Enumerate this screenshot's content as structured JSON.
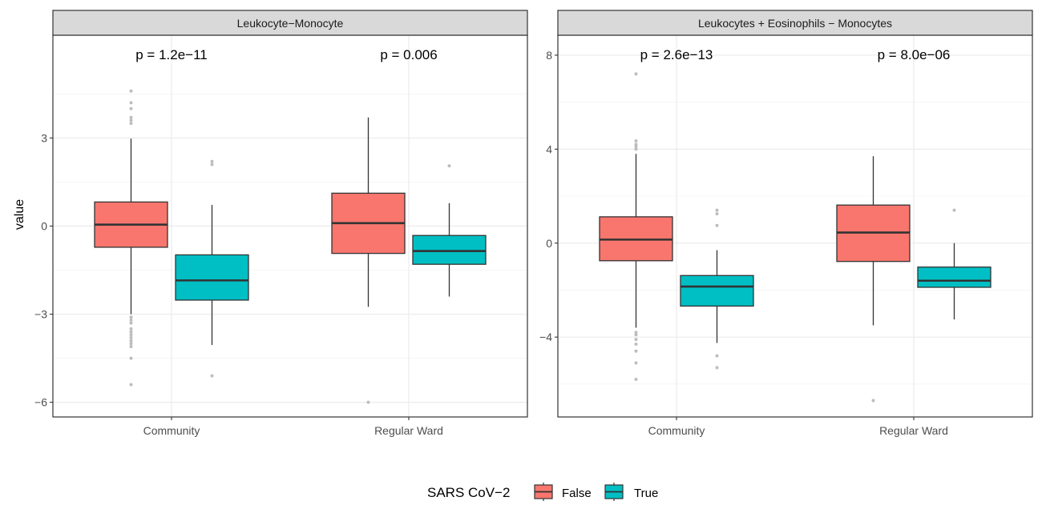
{
  "figure": {
    "y_axis_label": "value",
    "legend": {
      "title": "SARS CoV−2",
      "position": "bottom"
    }
  },
  "colors": {
    "false_fill": "#F8766D",
    "true_fill": "#00BFC4",
    "outlier": "#bdbdbd",
    "strip_bg": "#d9d9d9"
  },
  "chart_data": [
    {
      "type": "box",
      "title": "Leukocyte−Monocyte",
      "xlabel": "",
      "ylabel": "value",
      "ylim": [
        -6.5,
        6.5
      ],
      "y_ticks": [
        -6,
        -3,
        0,
        3
      ],
      "y_tick_labels": [
        "−6",
        "−3",
        "0",
        "3"
      ],
      "categories": [
        "Community",
        "Regular Ward"
      ],
      "legend": [
        "False",
        "True"
      ],
      "p_values": [
        "p = 1.2e−11",
        "p = 0.006"
      ],
      "series": [
        {
          "name": "False",
          "boxes": [
            {
              "category": "Community",
              "whisker_low": -3.0,
              "q1": -0.72,
              "median": 0.05,
              "q3": 0.82,
              "whisker_high": 2.98,
              "outliers": [
                4.6,
                4.2,
                4.0,
                3.7,
                3.6,
                3.5,
                -3.1,
                -3.2,
                -3.3,
                -3.5,
                -3.6,
                -3.7,
                -3.8,
                -3.9,
                -4.0,
                -4.1,
                -4.5,
                -5.4
              ]
            },
            {
              "category": "Regular Ward",
              "whisker_low": -2.75,
              "q1": -0.93,
              "median": 0.1,
              "q3": 1.12,
              "whisker_high": 3.7,
              "outliers": [
                -6.0
              ]
            }
          ]
        },
        {
          "name": "True",
          "boxes": [
            {
              "category": "Community",
              "whisker_low": -4.05,
              "q1": -2.52,
              "median": -1.85,
              "q3": -0.98,
              "whisker_high": 0.72,
              "outliers": [
                2.2,
                2.1,
                -5.1
              ]
            },
            {
              "category": "Regular Ward",
              "whisker_low": -2.4,
              "q1": -1.3,
              "median": -0.85,
              "q3": -0.32,
              "whisker_high": 0.78,
              "outliers": [
                2.05
              ]
            }
          ]
        }
      ]
    },
    {
      "type": "box",
      "title": "Leukocytes + Eosinophils − Monocytes",
      "xlabel": "",
      "ylabel": "value",
      "ylim": [
        -7.4,
        8.85
      ],
      "y_ticks": [
        -4,
        0,
        4,
        8
      ],
      "y_tick_labels": [
        "−4",
        "0",
        "4",
        "8"
      ],
      "categories": [
        "Community",
        "Regular Ward"
      ],
      "legend": [
        "False",
        "True"
      ],
      "p_values": [
        "p = 2.6e−13",
        "p = 8.0e−06"
      ],
      "series": [
        {
          "name": "False",
          "boxes": [
            {
              "category": "Community",
              "whisker_low": -3.6,
              "q1": -0.75,
              "median": 0.15,
              "q3": 1.12,
              "whisker_high": 3.8,
              "outliers": [
                7.2,
                4.35,
                4.2,
                4.1,
                4.0,
                -3.8,
                -3.9,
                -4.1,
                -4.3,
                -4.6,
                -5.1,
                -5.8
              ]
            },
            {
              "category": "Regular Ward",
              "whisker_low": -3.5,
              "q1": -0.78,
              "median": 0.45,
              "q3": 1.62,
              "whisker_high": 3.7,
              "outliers": [
                -6.7
              ]
            }
          ]
        },
        {
          "name": "True",
          "boxes": [
            {
              "category": "Community",
              "whisker_low": -4.25,
              "q1": -2.68,
              "median": -1.85,
              "q3": -1.38,
              "whisker_high": -0.3,
              "outliers": [
                1.4,
                1.25,
                0.75,
                -4.8,
                -5.3
              ]
            },
            {
              "category": "Regular Ward",
              "whisker_low": -3.25,
              "q1": -1.88,
              "median": -1.6,
              "q3": -1.02,
              "whisker_high": 0.0,
              "outliers": [
                1.4
              ]
            }
          ]
        }
      ]
    }
  ]
}
